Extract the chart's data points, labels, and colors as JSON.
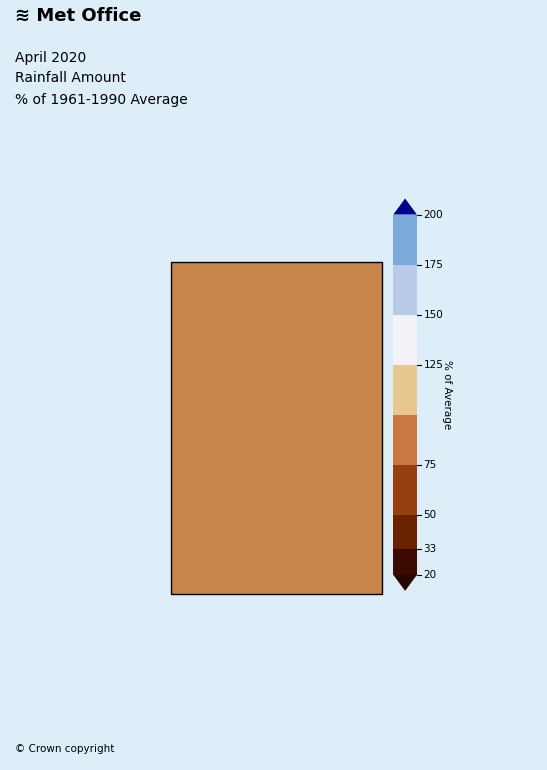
{
  "title_line1": "April 2020",
  "title_line2": "Rainfall Amount",
  "title_line3": "% of 1961-1990 Average",
  "copyright_text": "© Crown copyright",
  "background_color": "#ddeef8",
  "colorbar_label": "% of Average",
  "colorbar_tick_values": [
    20,
    33,
    50,
    75,
    125,
    150,
    175,
    200
  ],
  "seg_values": [
    20,
    33,
    50,
    75,
    100,
    125,
    150,
    175,
    200
  ],
  "seg_colors": [
    "#3b0900",
    "#6b2200",
    "#964010",
    "#c87840",
    "#e8c890",
    "#f2f2f8",
    "#b8ccea",
    "#7aaada",
    "#3366cc"
  ],
  "tip_color_bottom": "#280600",
  "tip_color_top": "#00008b",
  "ireland_color": "#f0f0f0",
  "map_extent": [
    -10.5,
    2.2,
    49.5,
    61.8
  ],
  "figsize": [
    5.47,
    7.7
  ],
  "dpi": 100
}
